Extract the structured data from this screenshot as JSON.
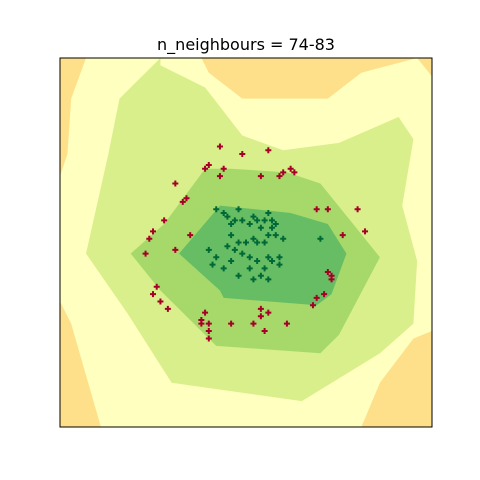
{
  "chart_data": {
    "type": "scatter",
    "title": "n_neighbours = 74-83",
    "xlabel": "",
    "ylabel": "",
    "xlim": [
      0,
      10
    ],
    "ylim": [
      0,
      10
    ],
    "ticks_visible": false,
    "grid": false,
    "legend": "none",
    "colors": {
      "class_a_points": "#a50026",
      "class_b_points": "#006837",
      "region_outer": "#fee08b",
      "region_1": "#ffffbf",
      "region_2": "#d9ef8b",
      "region_3": "#a6d96a",
      "region_4": "#66bd63"
    },
    "regions": [
      {
        "level": 1,
        "polygon": [
          [
            0.7,
            10
          ],
          [
            0.3,
            8.9
          ],
          [
            0.2,
            7.4
          ],
          [
            0,
            6.8
          ],
          [
            0,
            3.4
          ],
          [
            0.3,
            2.8
          ],
          [
            1.1,
            0
          ],
          [
            8.1,
            0
          ],
          [
            8.6,
            1.2
          ],
          [
            9.5,
            2.4
          ],
          [
            10,
            2.6
          ],
          [
            10,
            9.5
          ],
          [
            9.6,
            10
          ],
          [
            8.1,
            9.6
          ],
          [
            7.2,
            8.9
          ],
          [
            6.8,
            8.9
          ],
          [
            4.9,
            8.9
          ],
          [
            4.0,
            9.6
          ],
          [
            3.8,
            10
          ]
        ]
      },
      {
        "level": 2,
        "polygon": [
          [
            2.7,
            10
          ],
          [
            1.6,
            8.9
          ],
          [
            1.3,
            7.4
          ],
          [
            0.7,
            4.7
          ],
          [
            1.8,
            3.1
          ],
          [
            3.0,
            1.2
          ],
          [
            6.5,
            0.7
          ],
          [
            8.6,
            2.0
          ],
          [
            9.5,
            2.8
          ],
          [
            9.6,
            4.5
          ],
          [
            9.2,
            6.0
          ],
          [
            9.5,
            7.8
          ],
          [
            9.1,
            8.4
          ],
          [
            7.5,
            7.7
          ],
          [
            6.0,
            7.5
          ],
          [
            4.9,
            7.9
          ],
          [
            3.9,
            9.2
          ],
          [
            2.7,
            9.8
          ]
        ]
      },
      {
        "level": 3,
        "polygon": [
          [
            1.9,
            4.7
          ],
          [
            2.7,
            3.7
          ],
          [
            4.2,
            2.2
          ],
          [
            7.0,
            2.0
          ],
          [
            7.5,
            2.5
          ],
          [
            8.6,
            4.6
          ],
          [
            7.0,
            6.6
          ],
          [
            6.1,
            6.9
          ],
          [
            4.6,
            7.0
          ],
          [
            3.9,
            7.0
          ],
          [
            2.8,
            5.5
          ]
        ]
      },
      {
        "level": 4,
        "polygon": [
          [
            3.2,
            4.7
          ],
          [
            4.3,
            3.7
          ],
          [
            4.4,
            3.5
          ],
          [
            6.9,
            3.3
          ],
          [
            7.3,
            3.6
          ],
          [
            7.7,
            4.7
          ],
          [
            7.2,
            5.5
          ],
          [
            6.2,
            5.8
          ],
          [
            4.3,
            6.0
          ]
        ]
      },
      {
        "level": 4,
        "polygon": [
          [
            4.4,
            4.7
          ],
          [
            6.9,
            4.6
          ],
          [
            6.9,
            4.8
          ],
          [
            4.5,
            4.9
          ]
        ]
      }
    ],
    "series": [
      {
        "values": [
          [
            4.3,
            7.6
          ],
          [
            4.9,
            7.4
          ],
          [
            5.6,
            7.5
          ],
          [
            4.0,
            7.1
          ],
          [
            3.9,
            7.0
          ],
          [
            4.4,
            7.0
          ],
          [
            6.2,
            7.0
          ],
          [
            6.0,
            6.9
          ],
          [
            5.9,
            6.8
          ],
          [
            3.1,
            6.6
          ],
          [
            5.4,
            6.8
          ],
          [
            6.3,
            6.9
          ],
          [
            4.3,
            6.8
          ],
          [
            3.4,
            6.2
          ],
          [
            3.3,
            6.1
          ],
          [
            6.9,
            5.9
          ],
          [
            7.2,
            5.9
          ],
          [
            8.0,
            5.9
          ],
          [
            2.8,
            5.6
          ],
          [
            2.5,
            5.3
          ],
          [
            3.5,
            5.2
          ],
          [
            2.4,
            5.1
          ],
          [
            7.6,
            5.2
          ],
          [
            8.2,
            5.3
          ],
          [
            3.1,
            4.8
          ],
          [
            2.3,
            4.7
          ],
          [
            7.3,
            4.1
          ],
          [
            7.2,
            4.2
          ],
          [
            7.3,
            4.0
          ],
          [
            2.6,
            3.8
          ],
          [
            2.5,
            3.6
          ],
          [
            2.7,
            3.4
          ],
          [
            6.8,
            3.3
          ],
          [
            7.1,
            3.6
          ],
          [
            6.9,
            3.5
          ],
          [
            2.9,
            3.2
          ],
          [
            3.9,
            3.1
          ],
          [
            5.4,
            3.2
          ],
          [
            5.6,
            3.1
          ],
          [
            5.4,
            3.0
          ],
          [
            3.8,
            2.9
          ],
          [
            3.8,
            2.8
          ],
          [
            4.0,
            2.8
          ],
          [
            4.6,
            2.8
          ],
          [
            5.2,
            2.8
          ],
          [
            6.1,
            2.8
          ],
          [
            4.0,
            2.6
          ],
          [
            5.5,
            2.6
          ],
          [
            4.0,
            2.4
          ]
        ]
      },
      {
        "values": [
          [
            4.2,
            5.9
          ],
          [
            4.4,
            5.8
          ],
          [
            4.5,
            5.7
          ],
          [
            4.6,
            5.5
          ],
          [
            4.7,
            5.6
          ],
          [
            5.1,
            5.5
          ],
          [
            5.2,
            5.7
          ],
          [
            5.3,
            5.6
          ],
          [
            5.5,
            5.6
          ],
          [
            5.6,
            5.8
          ],
          [
            5.7,
            5.6
          ],
          [
            4.8,
            5.9
          ],
          [
            4.9,
            5.6
          ],
          [
            5.4,
            5.4
          ],
          [
            5.7,
            5.4
          ],
          [
            5.8,
            5.5
          ],
          [
            4.6,
            5.2
          ],
          [
            4.8,
            5.0
          ],
          [
            5.0,
            5.0
          ],
          [
            5.2,
            5.1
          ],
          [
            5.3,
            5.0
          ],
          [
            5.5,
            5.0
          ],
          [
            5.6,
            5.2
          ],
          [
            5.8,
            5.2
          ],
          [
            6.0,
            5.1
          ],
          [
            4.5,
            4.9
          ],
          [
            4.7,
            4.8
          ],
          [
            4.9,
            4.7
          ],
          [
            5.1,
            4.6
          ],
          [
            5.3,
            4.5
          ],
          [
            5.6,
            4.6
          ],
          [
            5.7,
            4.5
          ],
          [
            5.9,
            4.6
          ],
          [
            4.0,
            4.8
          ],
          [
            4.2,
            4.6
          ],
          [
            4.1,
            4.4
          ],
          [
            4.4,
            4.3
          ],
          [
            4.6,
            4.5
          ],
          [
            5.1,
            4.3
          ],
          [
            5.4,
            4.1
          ],
          [
            5.5,
            4.3
          ],
          [
            5.9,
            4.4
          ],
          [
            5.2,
            4.0
          ],
          [
            5.6,
            4.0
          ],
          [
            4.8,
            4.1
          ],
          [
            7.0,
            5.1
          ]
        ]
      }
    ]
  }
}
